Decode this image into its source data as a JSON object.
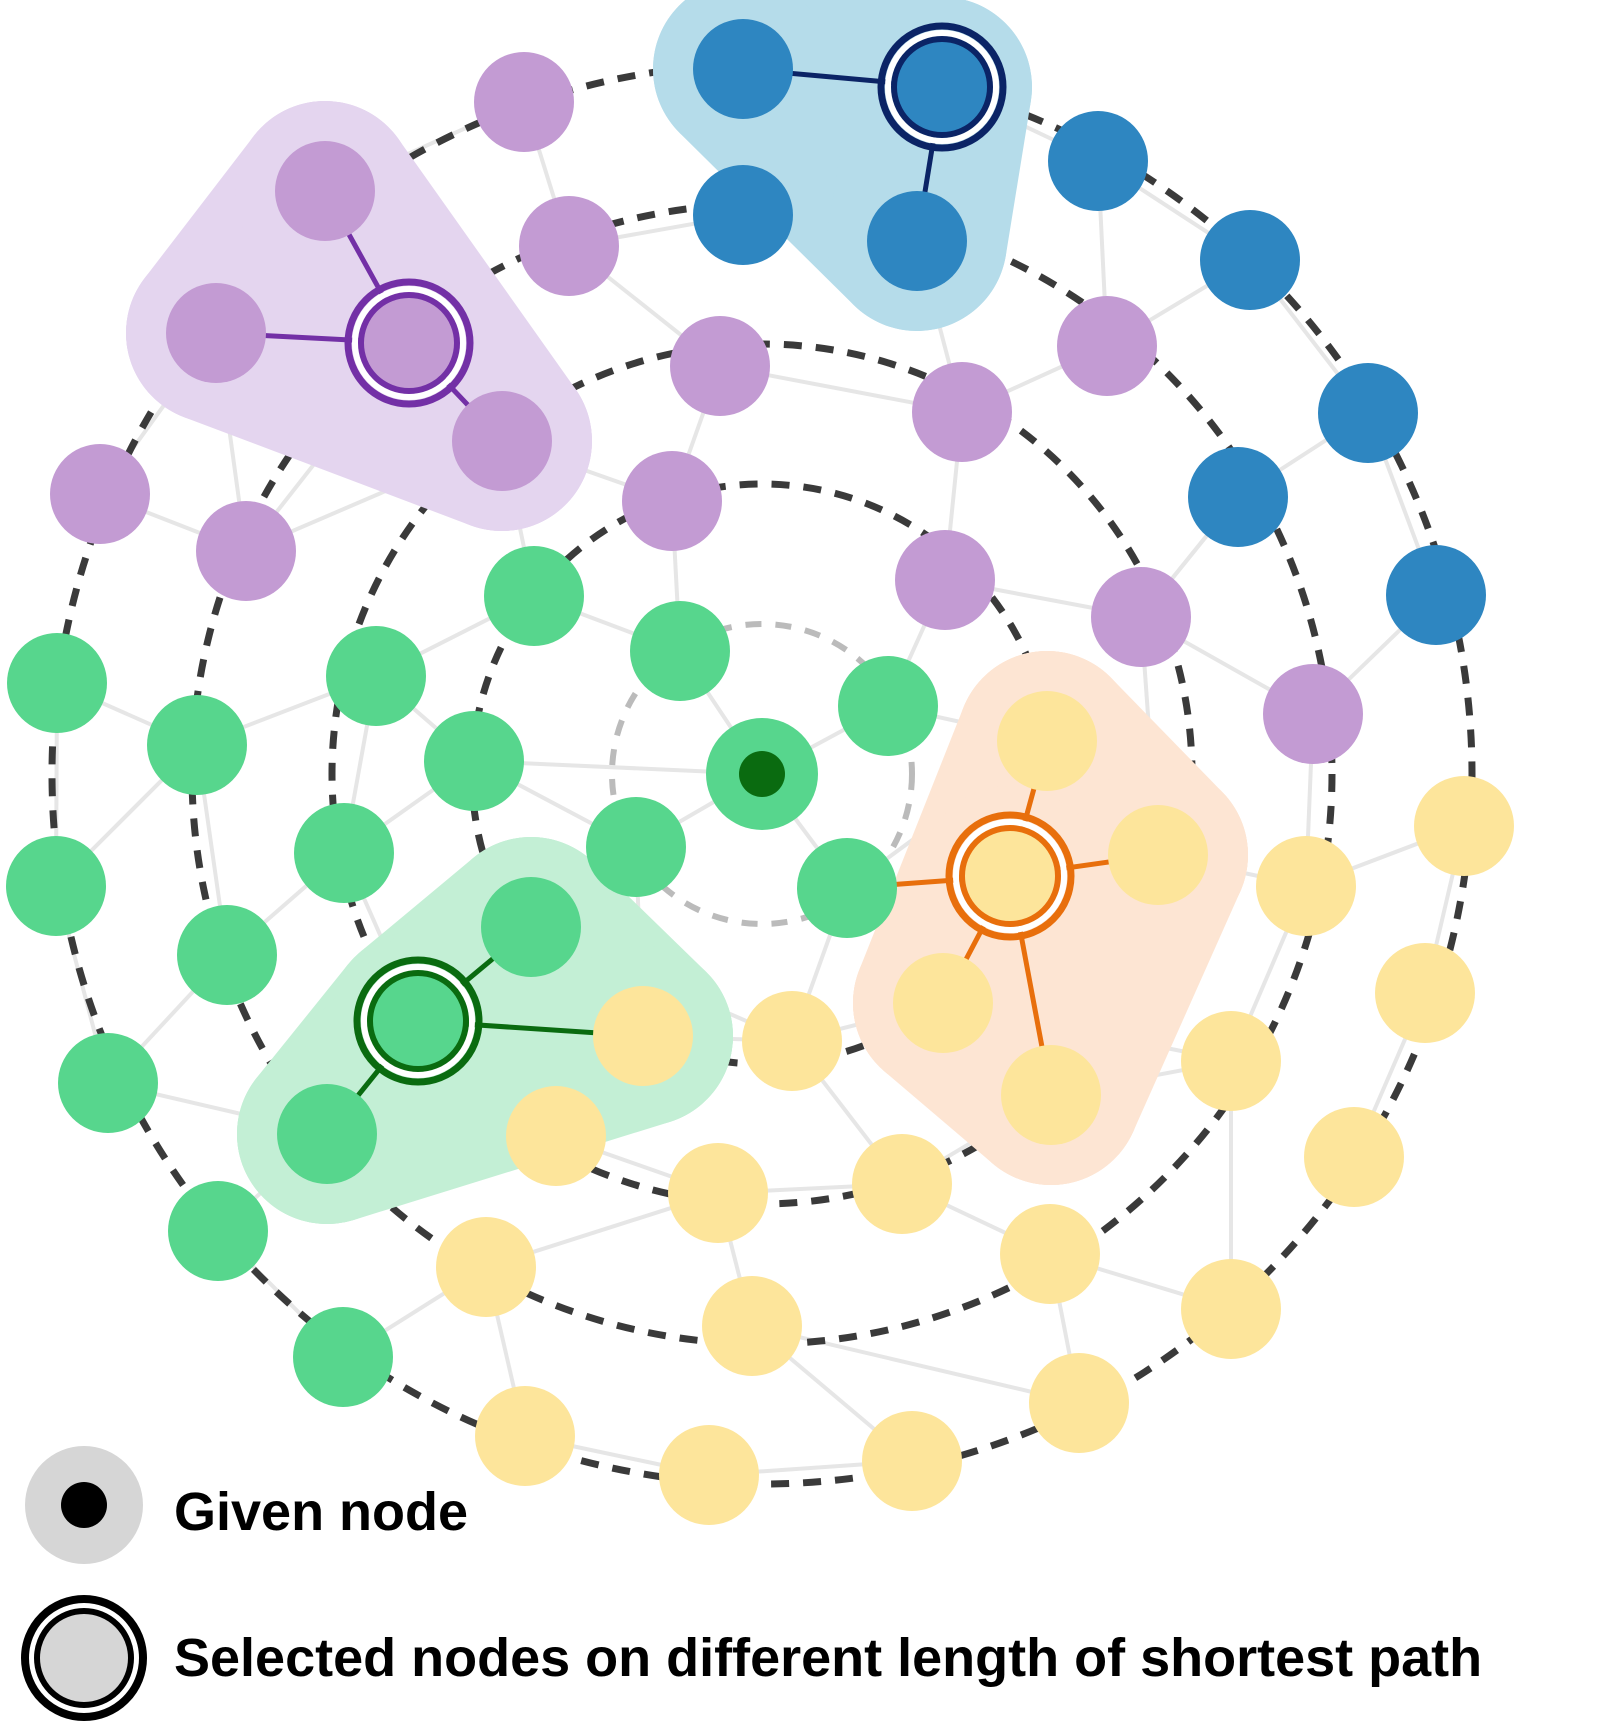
{
  "colors": {
    "background": "#ffffff",
    "ring": "#3a3a3a",
    "ring_inner": "#bbbbbb",
    "edge": "#e6e6e6",
    "green": "#57d68d",
    "green_dark": "#0a6b10",
    "green_halo": "#c3efd5",
    "purple": "#c39bd3",
    "purple_dark": "#7330a6",
    "purple_halo": "#e4d5ef",
    "blue": "#2e86c1",
    "blue_dark": "#0b2466",
    "blue_halo": "#b5dcea",
    "yellow": "#fde59b",
    "orange_dark": "#e86f0c",
    "orange_halo": "#fde5d3",
    "legend_gray": "#d6d6d6"
  },
  "legend": {
    "given_node_label": "Given node",
    "selected_nodes_label": "Selected nodes on different length of shortest path"
  }
}
